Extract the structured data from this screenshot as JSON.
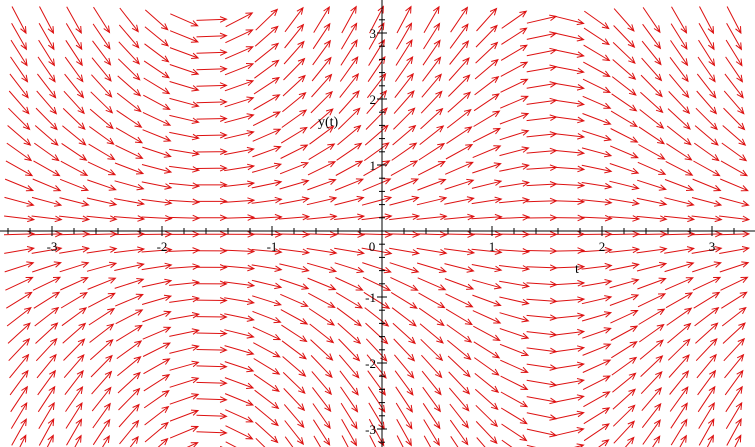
{
  "chart_data": {
    "type": "direction-field",
    "title": "",
    "xlabel": "t",
    "ylabel": "y(t)",
    "xlim": [
      -3.4,
      3.35
    ],
    "ylim": [
      -3.4,
      3.35
    ],
    "x_ticks": [
      -3,
      -2,
      -1,
      0,
      1,
      2,
      3
    ],
    "y_ticks": [
      -3,
      -2,
      -1,
      1,
      2,
      3
    ],
    "x_tick_labels": [
      "-3",
      "-2",
      "-1",
      "0",
      "1",
      "2",
      "3"
    ],
    "y_tick_labels": [
      "-3",
      "-2",
      "-1",
      "1",
      "2",
      "3"
    ],
    "field": {
      "equation_form": "dy/dt = y*cos(t)",
      "t_samples": [
        -3.3,
        -3.05,
        -2.8,
        -2.55,
        -2.3,
        -2.05,
        -1.8,
        -1.55,
        -1.3,
        -1.05,
        -0.8,
        -0.55,
        -0.3,
        -0.05,
        0.2,
        0.45,
        0.7,
        0.95,
        1.2,
        1.45,
        1.7,
        1.95,
        2.2,
        2.45,
        2.7,
        2.95,
        3.2
      ],
      "y_samples": [
        -3.3,
        -3.05,
        -2.8,
        -2.55,
        -2.3,
        -2.05,
        -1.8,
        -1.55,
        -1.3,
        -1.05,
        -0.8,
        -0.55,
        -0.3,
        -0.05,
        0.2,
        0.45,
        0.7,
        0.95,
        1.2,
        1.45,
        1.7,
        1.95,
        2.2,
        2.45,
        2.7,
        2.95,
        3.2
      ],
      "arrow_color": "#dd1111"
    },
    "grid": false,
    "axis_color": "#000000"
  }
}
